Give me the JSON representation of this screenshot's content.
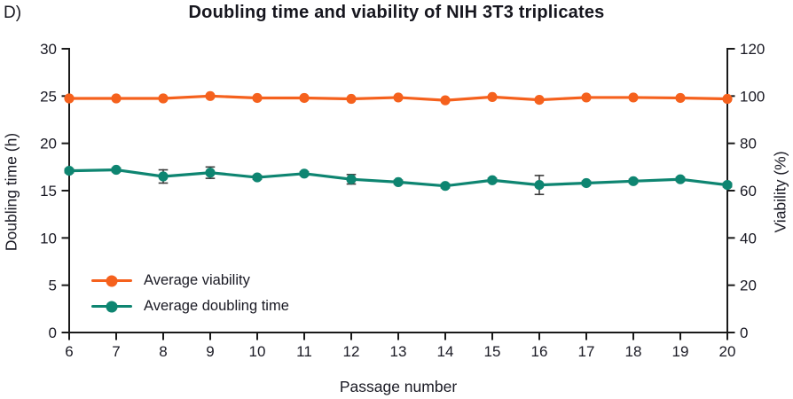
{
  "panel_label": "D)",
  "title": "Doubling time and viability of NIH 3T3 triplicates",
  "colors": {
    "viability_orange": "#F5611D",
    "doubling_teal": "#0E8571",
    "axis_black": "#1a1a1a",
    "error_bar_gray": "#3d3d3d",
    "text_dark": "#1a1a24"
  },
  "chart_data": {
    "type": "line",
    "title": "Doubling time and viability of NIH 3T3 triplicates",
    "xlabel": "Passage number",
    "ylabel_left": "Doubling time (h)",
    "ylabel_right": "Viability (%)",
    "x": [
      6,
      7,
      8,
      9,
      10,
      11,
      12,
      13,
      14,
      15,
      16,
      17,
      18,
      19,
      20
    ],
    "xlim": [
      6,
      20
    ],
    "ylim_left": [
      0,
      30
    ],
    "ylim_right": [
      0,
      120
    ],
    "yticks_left": [
      0,
      5,
      10,
      15,
      20,
      25,
      30
    ],
    "yticks_right": [
      0,
      20,
      40,
      60,
      80,
      100,
      120
    ],
    "xticks": [
      6,
      7,
      8,
      9,
      10,
      11,
      12,
      13,
      14,
      15,
      16,
      17,
      18,
      19,
      20
    ],
    "grid": false,
    "legend_position": "inside lower left",
    "series": [
      {
        "name": "Average viability",
        "axis": "right",
        "color": "#F5611D",
        "marker": "circle",
        "values": [
          99.0,
          99.0,
          99.0,
          100.0,
          99.2,
          99.2,
          98.8,
          99.4,
          98.2,
          99.6,
          98.4,
          99.4,
          99.4,
          99.2,
          98.8
        ]
      },
      {
        "name": "Average doubling time",
        "axis": "left",
        "color": "#0E8571",
        "marker": "circle",
        "values": [
          17.1,
          17.2,
          16.5,
          16.9,
          16.4,
          16.8,
          16.2,
          15.9,
          15.5,
          16.1,
          15.6,
          15.8,
          16.0,
          16.2,
          15.6
        ],
        "errors": [
          0.2,
          0.2,
          0.7,
          0.6,
          0.2,
          0.2,
          0.5,
          0.2,
          0.2,
          0.2,
          1.0,
          0.2,
          0.2,
          0.2,
          0.2
        ]
      }
    ]
  }
}
